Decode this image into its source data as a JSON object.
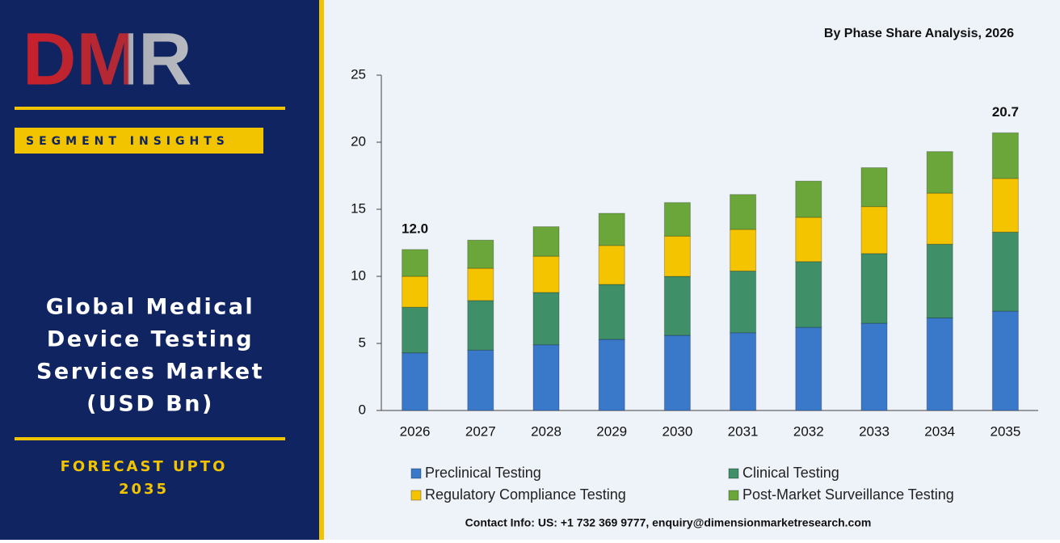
{
  "sidebar": {
    "logo": "DMR",
    "badge": "SEGMENT INSIGHTS",
    "title_lines": [
      "Global Medical",
      "Device Testing",
      "Services Market",
      "(USD Bn)"
    ],
    "forecast_lines": [
      "FORECAST UPTO",
      "2035"
    ]
  },
  "footer": "Contact Info: US: +1 732 369 9777, enquiry@dimensionmarketresearch.com",
  "chart_data": {
    "type": "stacked_bar",
    "subtitle": "By Phase Share Analysis, 2026",
    "categories": [
      "2026",
      "2027",
      "2028",
      "2029",
      "2030",
      "2031",
      "2032",
      "2033",
      "2034",
      "2035"
    ],
    "series": [
      {
        "name": "Preclinical Testing",
        "color": "#3a78c9",
        "values": [
          4.3,
          4.5,
          4.9,
          5.3,
          5.6,
          5.8,
          6.2,
          6.5,
          6.9,
          7.4
        ]
      },
      {
        "name": "Clinical Testing",
        "color": "#3f8f68",
        "values": [
          3.4,
          3.7,
          3.9,
          4.1,
          4.4,
          4.6,
          4.9,
          5.2,
          5.5,
          5.9
        ]
      },
      {
        "name": "Regulatory Compliance Testing",
        "color": "#f5c400",
        "values": [
          2.3,
          2.4,
          2.7,
          2.9,
          3.0,
          3.1,
          3.3,
          3.5,
          3.8,
          4.0
        ]
      },
      {
        "name": "Post-Market Surveillance Testing",
        "color": "#6aa63a",
        "values": [
          2.0,
          2.1,
          2.2,
          2.4,
          2.5,
          2.6,
          2.7,
          2.9,
          3.1,
          3.4
        ]
      }
    ],
    "total_labels": [
      {
        "value": 12,
        "label": "12.0"
      },
      null,
      null,
      null,
      null,
      null,
      null,
      null,
      null,
      {
        "value": 20.7,
        "label": "20.7"
      }
    ],
    "ylim": [
      0,
      25
    ],
    "yticks": [
      0,
      5,
      10,
      15,
      20,
      25
    ],
    "grid": false
  }
}
